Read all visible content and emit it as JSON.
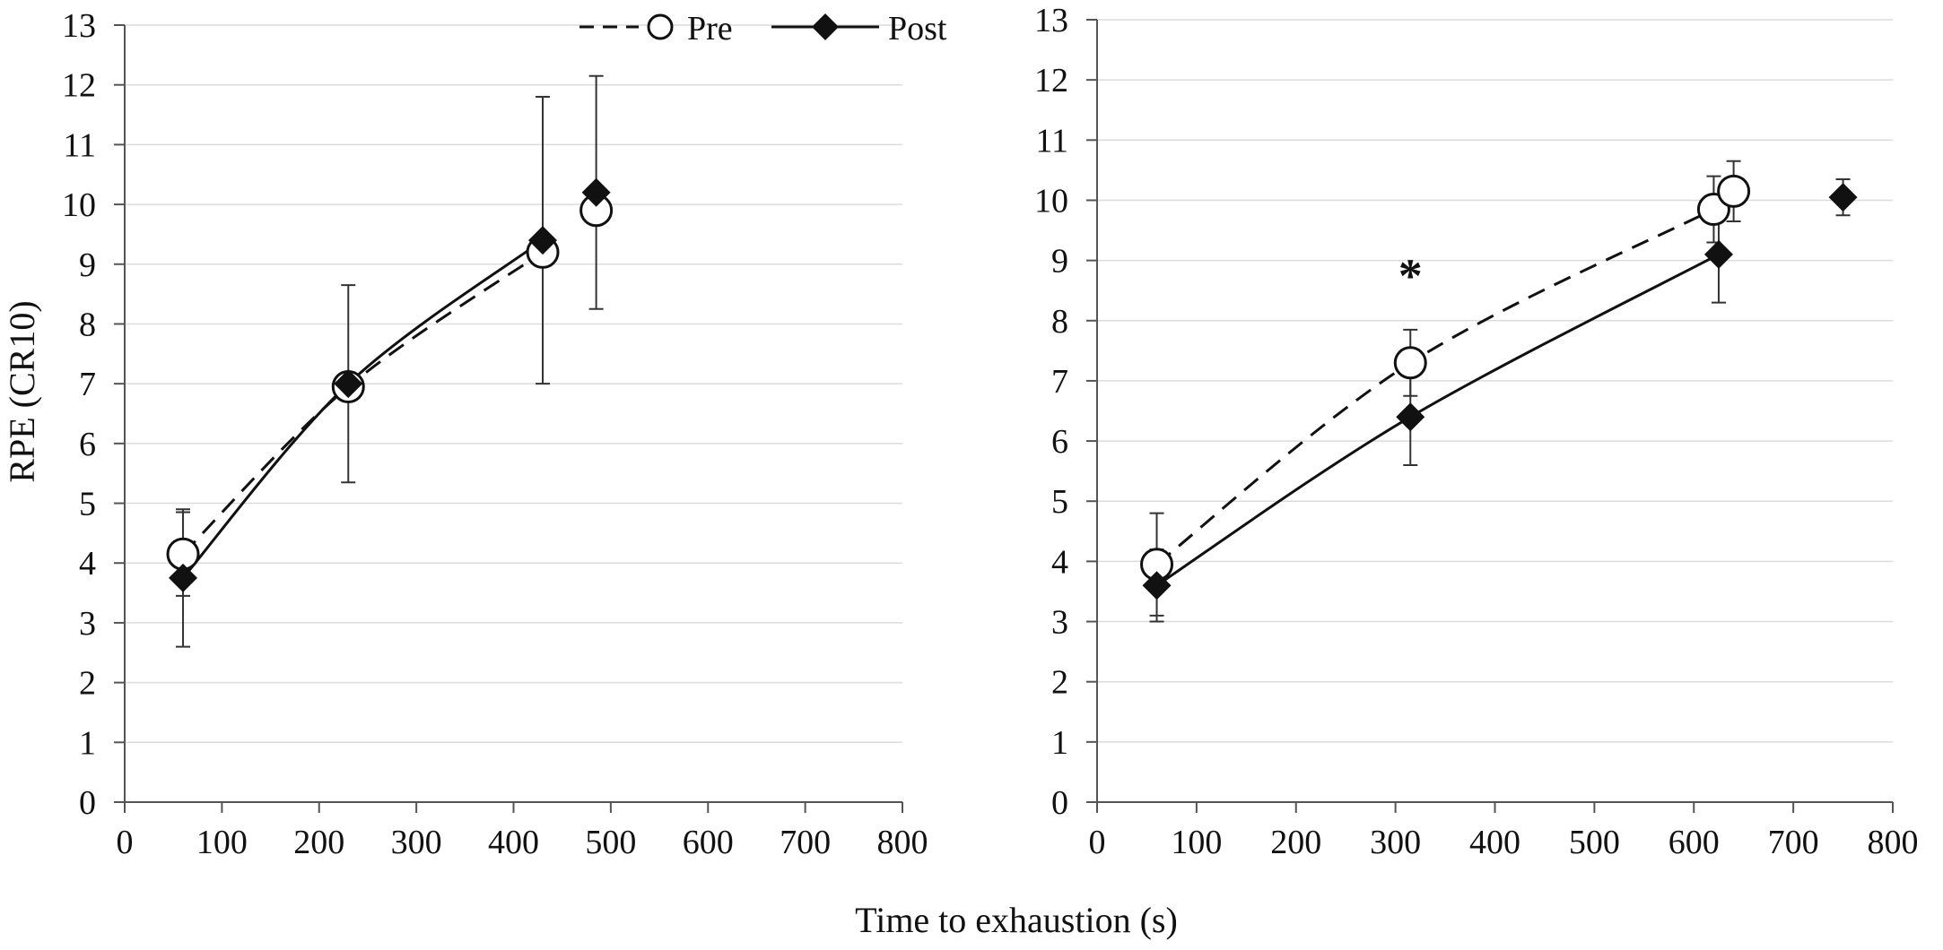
{
  "figure": {
    "shared_xlabel": "Time to exhaustion (s)"
  },
  "legend": {
    "entries": [
      {
        "name": "Pre",
        "marker": "open-circle",
        "line": "dashed"
      },
      {
        "name": "Post",
        "marker": "filled-diamond",
        "line": "solid"
      }
    ]
  },
  "chart_data": [
    {
      "type": "line",
      "panel": "left",
      "title": "",
      "xlabel": "",
      "ylabel": "RPE (CR10)",
      "xlim": [
        0,
        800
      ],
      "ylim": [
        0,
        13
      ],
      "xticks": [
        0,
        100,
        200,
        300,
        400,
        500,
        600,
        700,
        800
      ],
      "yticks": [
        0,
        1,
        2,
        3,
        4,
        5,
        6,
        7,
        8,
        9,
        10,
        11,
        12,
        13
      ],
      "grid": true,
      "legend_position": "top-right",
      "series": [
        {
          "name": "Pre",
          "x": [
            60,
            230,
            430,
            485
          ],
          "y": [
            4.15,
            6.95,
            9.2,
            9.9
          ],
          "error": [
            0.7,
            0,
            0,
            0
          ],
          "connected_points": 3
        },
        {
          "name": "Post",
          "x": [
            60,
            230,
            430,
            485
          ],
          "y": [
            3.75,
            7.0,
            9.4,
            10.2
          ],
          "error": [
            1.15,
            1.65,
            2.4,
            1.95
          ],
          "connected_points": 3
        }
      ],
      "annotations": []
    },
    {
      "type": "line",
      "panel": "right",
      "title": "",
      "xlabel": "",
      "ylabel": "",
      "xlim": [
        0,
        800
      ],
      "ylim": [
        0,
        13
      ],
      "xticks": [
        0,
        100,
        200,
        300,
        400,
        500,
        600,
        700,
        800
      ],
      "yticks": [
        0,
        1,
        2,
        3,
        4,
        5,
        6,
        7,
        8,
        9,
        10,
        11,
        12,
        13
      ],
      "grid": true,
      "legend_position": "none",
      "series": [
        {
          "name": "Pre",
          "x": [
            60,
            315,
            620,
            640
          ],
          "y": [
            3.95,
            7.3,
            9.85,
            10.15
          ],
          "error": [
            0.85,
            0.55,
            0.55,
            0.5
          ],
          "connected_points": 3
        },
        {
          "name": "Post",
          "x": [
            60,
            315,
            625,
            750
          ],
          "y": [
            3.6,
            6.4,
            9.1,
            10.05
          ],
          "error": [
            0.6,
            0.8,
            0.8,
            0.3
          ],
          "connected_points": 3
        }
      ],
      "annotations": [
        {
          "text": "*",
          "x": 315,
          "y": 8.8
        }
      ]
    }
  ]
}
